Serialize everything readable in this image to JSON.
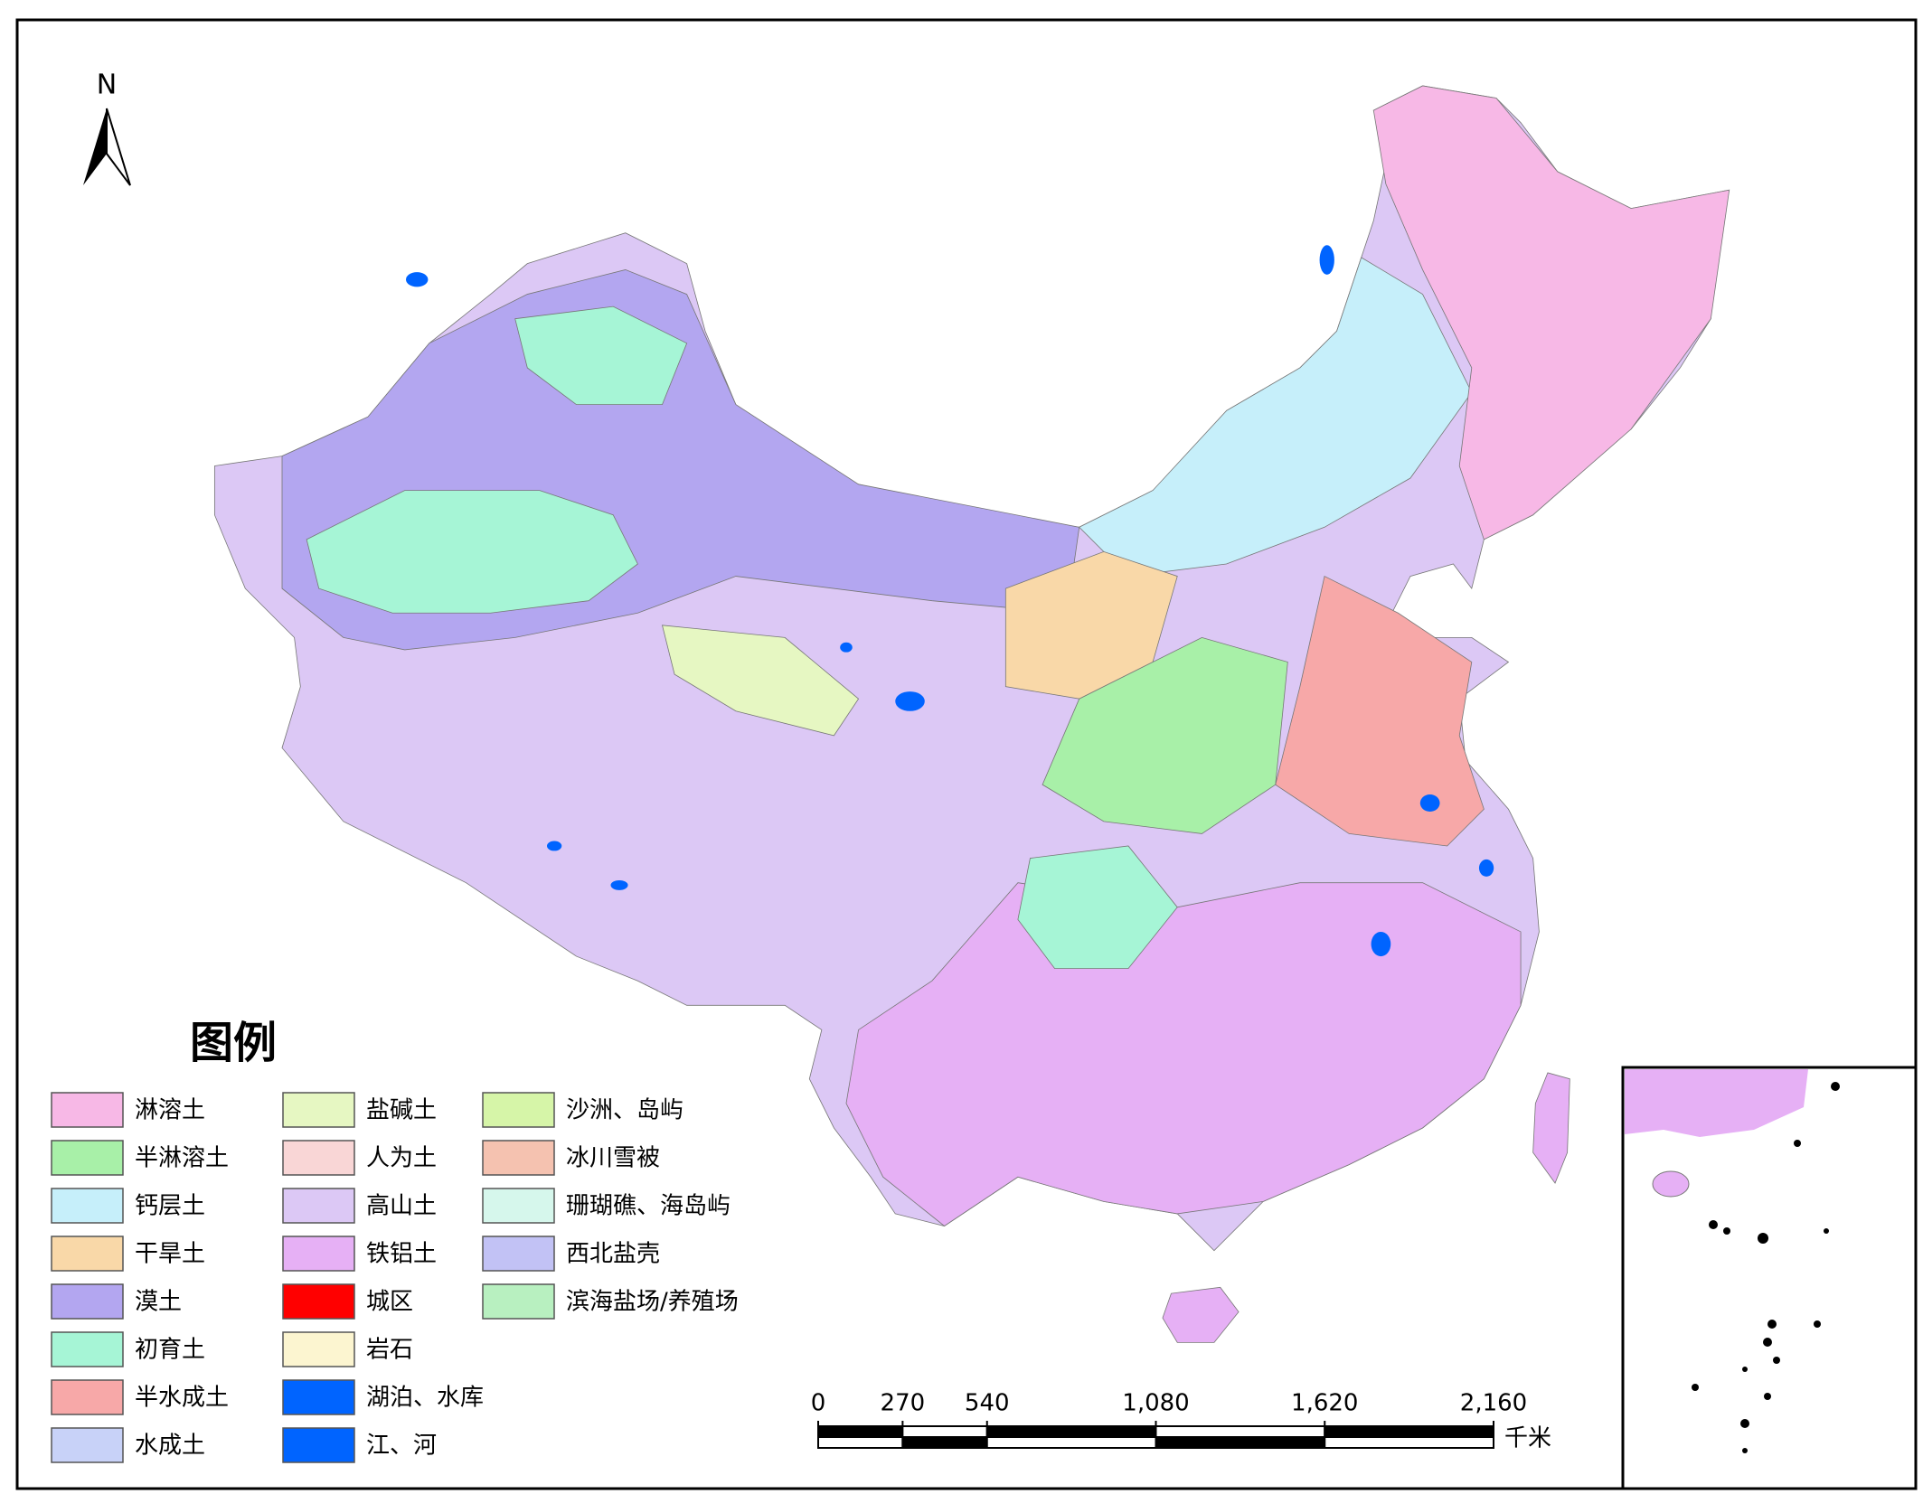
{
  "north_arrow": {
    "label": "N"
  },
  "legend": {
    "title": "图例",
    "items": [
      {
        "label": "淋溶土",
        "color": "#f7b8e6"
      },
      {
        "label": "半淋溶土",
        "color": "#a8f0a8"
      },
      {
        "label": "钙层土",
        "color": "#c6effa"
      },
      {
        "label": "干旱土",
        "color": "#f9d8a8"
      },
      {
        "label": "漠土",
        "color": "#b3a6f0"
      },
      {
        "label": "初育土",
        "color": "#a6f5d6"
      },
      {
        "label": "半水成土",
        "color": "#f7a8a8"
      },
      {
        "label": "水成土",
        "color": "#c8d2f8"
      },
      {
        "label": "盐碱土",
        "color": "#e6f7c2"
      },
      {
        "label": "人为土",
        "color": "#f9d6d6"
      },
      {
        "label": "高山土",
        "color": "#dcc8f5"
      },
      {
        "label": "铁铝土",
        "color": "#e6b0f5"
      },
      {
        "label": "城区",
        "color": "#ff0000"
      },
      {
        "label": "岩石",
        "color": "#fcf5d0"
      },
      {
        "label": "湖泊、水库",
        "color": "#0064ff"
      },
      {
        "label": "江、河",
        "color": "#0064ff"
      },
      {
        "label": "沙洲、岛屿",
        "color": "#d6f5a8"
      },
      {
        "label": "冰川雪被",
        "color": "#f5c2b0"
      },
      {
        "label": "珊瑚礁、海岛屿",
        "color": "#d6f7ec"
      },
      {
        "label": "西北盐壳",
        "color": "#c2c2f5"
      },
      {
        "label": "滨海盐场/养殖场",
        "color": "#b8f0c0"
      }
    ]
  },
  "scale_bar": {
    "ticks": [
      0,
      270,
      540,
      {
        "value": 1080,
        "label": "1,080"
      },
      {
        "value": 1620,
        "label": "1,620"
      },
      {
        "value": 2160,
        "label": "2,160"
      }
    ],
    "unit": "千米"
  }
}
